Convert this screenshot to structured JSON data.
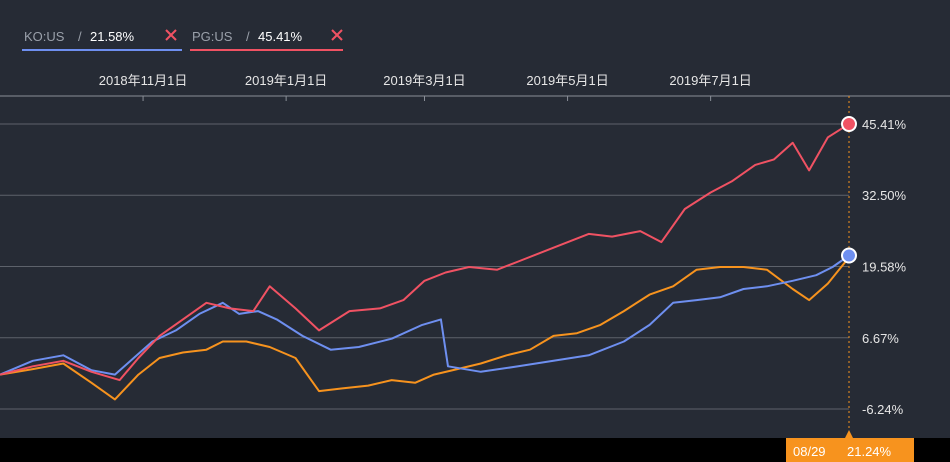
{
  "legend": [
    {
      "ticker": "KO:US",
      "sep": "/",
      "value": "21.58%",
      "color": "#6e8ff0",
      "close_icon": "close-x-icon"
    },
    {
      "ticker": "PG:US",
      "sep": "/",
      "value": "45.41%",
      "color": "#f05263",
      "close_icon": "close-x-icon"
    }
  ],
  "axis": {
    "x_ticks": [
      "2018年11月1日",
      "2019年1月1日",
      "2019年3月1日",
      "2019年5月1日",
      "2019年7月1日"
    ],
    "y_ticks": [
      "45.41%",
      "32.50%",
      "19.58%",
      "6.67%",
      "-6.24%"
    ]
  },
  "crosshair": {
    "date": "08/29",
    "value": "21.24%"
  },
  "chart_data": {
    "type": "line",
    "title": "",
    "xlabel": "",
    "ylabel": "",
    "x_range": [
      "2018-09-01",
      "2019-08-29"
    ],
    "y_range_pct": [
      -11.0,
      50.0
    ],
    "grid": true,
    "legend_position": "top-left",
    "series": [
      {
        "name": "KO:US",
        "color": "#6e8ff0",
        "end_marker": true,
        "points": [
          [
            "2018-09-01",
            0.0
          ],
          [
            "2018-09-15",
            2.5
          ],
          [
            "2018-09-28",
            3.5
          ],
          [
            "2018-10-10",
            0.8
          ],
          [
            "2018-10-20",
            0.0
          ],
          [
            "2018-10-28",
            3.0
          ],
          [
            "2018-11-05",
            6.0
          ],
          [
            "2018-11-15",
            8.0
          ],
          [
            "2018-11-25",
            11.0
          ],
          [
            "2018-12-05",
            13.0
          ],
          [
            "2018-12-12",
            11.0
          ],
          [
            "2018-12-20",
            11.5
          ],
          [
            "2018-12-28",
            10.0
          ],
          [
            "2019-01-08",
            7.0
          ],
          [
            "2019-01-20",
            4.5
          ],
          [
            "2019-02-01",
            5.0
          ],
          [
            "2019-02-15",
            6.5
          ],
          [
            "2019-02-28",
            9.0
          ],
          [
            "2019-03-08",
            10.0
          ],
          [
            "2019-03-11",
            1.5
          ],
          [
            "2019-03-25",
            0.5
          ],
          [
            "2019-04-10",
            1.5
          ],
          [
            "2019-04-25",
            2.5
          ],
          [
            "2019-05-10",
            3.5
          ],
          [
            "2019-05-25",
            6.0
          ],
          [
            "2019-06-05",
            9.0
          ],
          [
            "2019-06-15",
            13.0
          ],
          [
            "2019-06-25",
            13.5
          ],
          [
            "2019-07-05",
            14.0
          ],
          [
            "2019-07-15",
            15.5
          ],
          [
            "2019-07-25",
            16.0
          ],
          [
            "2019-08-05",
            17.0
          ],
          [
            "2019-08-15",
            18.0
          ],
          [
            "2019-08-22",
            19.5
          ],
          [
            "2019-08-29",
            21.58
          ]
        ]
      },
      {
        "name": "PG:US",
        "color": "#f05263",
        "end_marker": true,
        "points": [
          [
            "2018-09-01",
            0.0
          ],
          [
            "2018-09-15",
            1.5
          ],
          [
            "2018-09-28",
            2.5
          ],
          [
            "2018-10-10",
            0.5
          ],
          [
            "2018-10-22",
            -1.0
          ],
          [
            "2018-10-30",
            3.0
          ],
          [
            "2018-11-08",
            7.0
          ],
          [
            "2018-11-18",
            10.0
          ],
          [
            "2018-11-28",
            13.0
          ],
          [
            "2018-12-08",
            12.0
          ],
          [
            "2018-12-18",
            11.5
          ],
          [
            "2018-12-25",
            16.0
          ],
          [
            "2019-01-05",
            12.0
          ],
          [
            "2019-01-15",
            8.0
          ],
          [
            "2019-01-28",
            11.5
          ],
          [
            "2019-02-10",
            12.0
          ],
          [
            "2019-02-20",
            13.5
          ],
          [
            "2019-03-01",
            17.0
          ],
          [
            "2019-03-10",
            18.5
          ],
          [
            "2019-03-20",
            19.5
          ],
          [
            "2019-04-01",
            19.0
          ],
          [
            "2019-04-10",
            20.5
          ],
          [
            "2019-04-25",
            23.0
          ],
          [
            "2019-05-10",
            25.5
          ],
          [
            "2019-05-20",
            25.0
          ],
          [
            "2019-06-01",
            26.0
          ],
          [
            "2019-06-10",
            24.0
          ],
          [
            "2019-06-20",
            30.0
          ],
          [
            "2019-07-01",
            33.0
          ],
          [
            "2019-07-10",
            35.0
          ],
          [
            "2019-07-20",
            38.0
          ],
          [
            "2019-07-28",
            39.0
          ],
          [
            "2019-08-05",
            42.0
          ],
          [
            "2019-08-12",
            37.0
          ],
          [
            "2019-08-20",
            43.0
          ],
          [
            "2019-08-29",
            45.41
          ]
        ]
      },
      {
        "name": "",
        "color": "#f7931e",
        "end_marker": false,
        "points": [
          [
            "2018-09-01",
            0.0
          ],
          [
            "2018-09-15",
            1.0
          ],
          [
            "2018-09-28",
            2.0
          ],
          [
            "2018-10-10",
            -1.5
          ],
          [
            "2018-10-20",
            -4.5
          ],
          [
            "2018-10-30",
            0.0
          ],
          [
            "2018-11-08",
            3.0
          ],
          [
            "2018-11-18",
            4.0
          ],
          [
            "2018-11-28",
            4.5
          ],
          [
            "2018-12-05",
            6.0
          ],
          [
            "2018-12-15",
            6.0
          ],
          [
            "2018-12-25",
            5.0
          ],
          [
            "2019-01-05",
            3.0
          ],
          [
            "2019-01-15",
            -3.0
          ],
          [
            "2019-01-25",
            -2.5
          ],
          [
            "2019-02-05",
            -2.0
          ],
          [
            "2019-02-15",
            -1.0
          ],
          [
            "2019-02-25",
            -1.5
          ],
          [
            "2019-03-05",
            0.0
          ],
          [
            "2019-03-15",
            1.0
          ],
          [
            "2019-03-25",
            2.0
          ],
          [
            "2019-04-05",
            3.5
          ],
          [
            "2019-04-15",
            4.5
          ],
          [
            "2019-04-25",
            7.0
          ],
          [
            "2019-05-05",
            7.5
          ],
          [
            "2019-05-15",
            9.0
          ],
          [
            "2019-05-25",
            11.5
          ],
          [
            "2019-06-05",
            14.5
          ],
          [
            "2019-06-15",
            16.0
          ],
          [
            "2019-06-25",
            19.0
          ],
          [
            "2019-07-05",
            19.5
          ],
          [
            "2019-07-15",
            19.5
          ],
          [
            "2019-07-25",
            19.0
          ],
          [
            "2019-08-05",
            15.5
          ],
          [
            "2019-08-12",
            13.5
          ],
          [
            "2019-08-20",
            16.5
          ],
          [
            "2019-08-29",
            21.24
          ]
        ]
      }
    ]
  }
}
